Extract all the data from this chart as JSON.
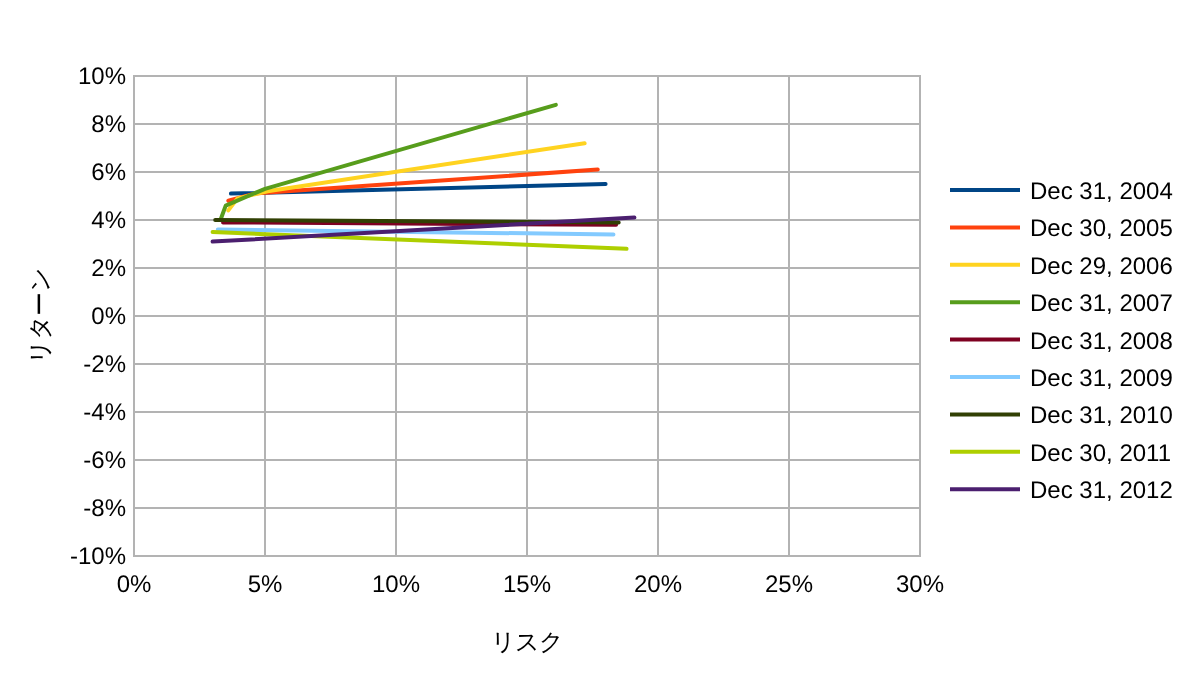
{
  "chart_data": {
    "type": "line",
    "xlabel": "リスク",
    "ylabel": "リターン",
    "xlim": [
      0,
      30
    ],
    "ylim": [
      -10,
      10
    ],
    "xticks": [
      {
        "value": 0,
        "label": "0%"
      },
      {
        "value": 5,
        "label": "5%"
      },
      {
        "value": 10,
        "label": "10%"
      },
      {
        "value": 15,
        "label": "15%"
      },
      {
        "value": 20,
        "label": "20%"
      },
      {
        "value": 25,
        "label": "25%"
      },
      {
        "value": 30,
        "label": "30%"
      }
    ],
    "yticks": [
      {
        "value": -10,
        "label": "-10%"
      },
      {
        "value": -8,
        "label": "-8%"
      },
      {
        "value": -6,
        "label": "-6%"
      },
      {
        "value": -4,
        "label": "-4%"
      },
      {
        "value": -2,
        "label": "-2%"
      },
      {
        "value": 0,
        "label": "0%"
      },
      {
        "value": 2,
        "label": "2%"
      },
      {
        "value": 4,
        "label": "4%"
      },
      {
        "value": 6,
        "label": "6%"
      },
      {
        "value": 8,
        "label": "8%"
      },
      {
        "value": 10,
        "label": "10%"
      }
    ],
    "grid": true,
    "legend": "right",
    "marker": "none",
    "line_style": "solid",
    "series": [
      {
        "name": "Dec 31, 2004",
        "color": "#004586",
        "x": [
          3.7,
          18.0
        ],
        "values": [
          5.1,
          5.5
        ]
      },
      {
        "name": "Dec 30, 2005",
        "color": "#ff420e",
        "x": [
          3.6,
          4.6,
          17.7
        ],
        "values": [
          4.8,
          5.1,
          6.1
        ]
      },
      {
        "name": "Dec 29, 2006",
        "color": "#ffd320",
        "x": [
          3.6,
          3.95,
          5.1,
          17.2
        ],
        "values": [
          4.4,
          4.9,
          5.2,
          7.2
        ]
      },
      {
        "name": "Dec 31, 2007",
        "color": "#579d1c",
        "x": [
          3.3,
          3.5,
          5.0,
          16.1
        ],
        "values": [
          4.0,
          4.6,
          5.3,
          8.8
        ]
      },
      {
        "name": "Dec 31, 2008",
        "color": "#7e0021",
        "x": [
          3.4,
          18.4
        ],
        "values": [
          3.9,
          3.8
        ]
      },
      {
        "name": "Dec 31, 2009",
        "color": "#83caff",
        "x": [
          3.2,
          18.3
        ],
        "values": [
          3.6,
          3.4
        ]
      },
      {
        "name": "Dec 31, 2010",
        "color": "#314004",
        "x": [
          3.1,
          18.5
        ],
        "values": [
          4.0,
          3.9
        ]
      },
      {
        "name": "Dec 30, 2011",
        "color": "#aecf00",
        "x": [
          3.0,
          18.8
        ],
        "values": [
          3.5,
          2.8
        ]
      },
      {
        "name": "Dec 31, 2012",
        "color": "#4b1f6f",
        "x": [
          3.0,
          19.1
        ],
        "values": [
          3.1,
          4.1
        ]
      }
    ]
  }
}
